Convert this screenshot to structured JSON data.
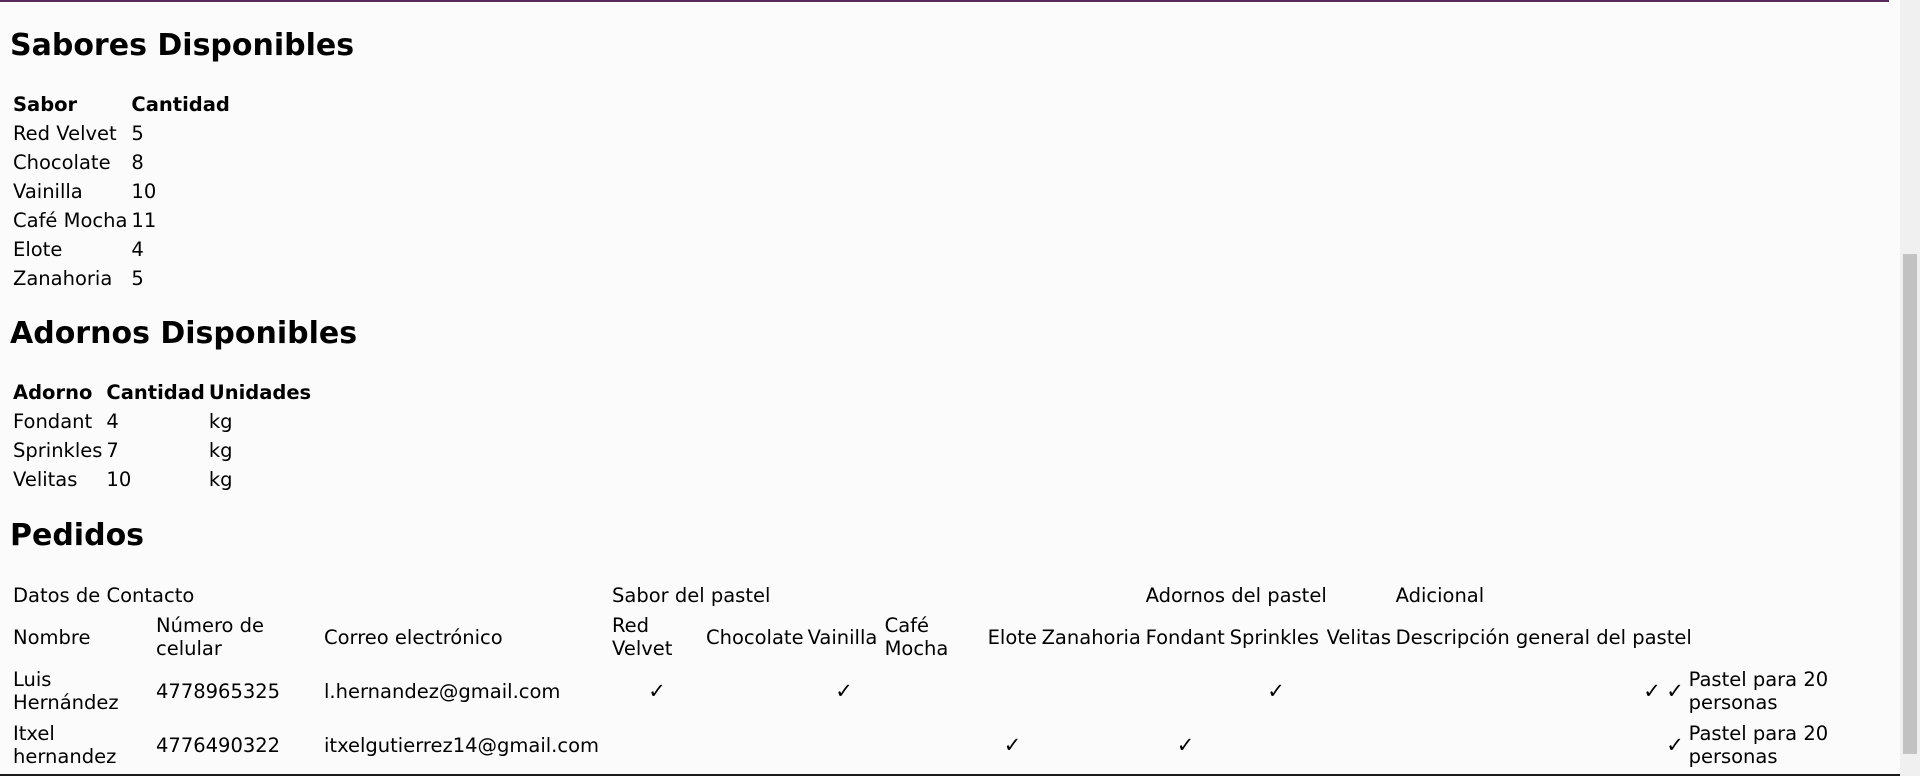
{
  "sabores": {
    "title": "Sabores Disponibles",
    "headers": [
      "Sabor",
      "Cantidad"
    ],
    "rows": [
      [
        "Red Velvet",
        "5"
      ],
      [
        "Chocolate",
        "8"
      ],
      [
        "Vainilla",
        "10"
      ],
      [
        "Café Mocha",
        "11"
      ],
      [
        "Elote",
        "4"
      ],
      [
        "Zanahoria",
        "5"
      ]
    ]
  },
  "adornos": {
    "title": "Adornos Disponibles",
    "headers": [
      "Adorno",
      "Cantidad",
      "Unidades"
    ],
    "rows": [
      [
        "Fondant",
        "4",
        "kg"
      ],
      [
        "Sprinkles",
        "7",
        "kg"
      ],
      [
        "Velitas",
        "10",
        "kg"
      ]
    ]
  },
  "pedidos": {
    "title": "Pedidos",
    "groups": {
      "contacto": "Datos de Contacto",
      "sabor": "Sabor del pastel",
      "adornos": "Adornos del pastel",
      "adicional": "Adicional"
    },
    "columns": {
      "nombre": "Nombre",
      "celular": "Número de celular",
      "correo": "Correo electrónico",
      "red_velvet": "Red Velvet",
      "chocolate": "Chocolate",
      "vainilla": "Vainilla",
      "cafe_mocha": "Café Mocha",
      "elote": "Elote",
      "zanahoria": "Zanahoria",
      "fondant": "Fondant",
      "sprinkles": "Sprinkles",
      "velitas": "Velitas",
      "descripcion": "Descripción general del pastel"
    },
    "check_symbol": "✓",
    "rows": [
      {
        "nombre": "Luis Hernández",
        "celular": "4778965325",
        "correo": "l.hernandez@gmail.com",
        "c1": "✓",
        "c2": "",
        "c3": "✓",
        "c4": "",
        "c5": "",
        "c6": "",
        "c7": "",
        "c8": "✓",
        "c9": "",
        "e1": "✓",
        "e2": "✓",
        "descripcion": "Pastel para 20 personas"
      },
      {
        "nombre": "Itxel hernandez",
        "celular": "4776490322",
        "correo": "itxelgutierrez14@gmail.com",
        "c1": "",
        "c2": "",
        "c3": "",
        "c4": "",
        "c5": "✓",
        "c6": "",
        "c7": "✓",
        "c8": "",
        "c9": "",
        "e1": "",
        "e2": "✓",
        "descripcion": "Pastel para 20 personas"
      }
    ]
  }
}
